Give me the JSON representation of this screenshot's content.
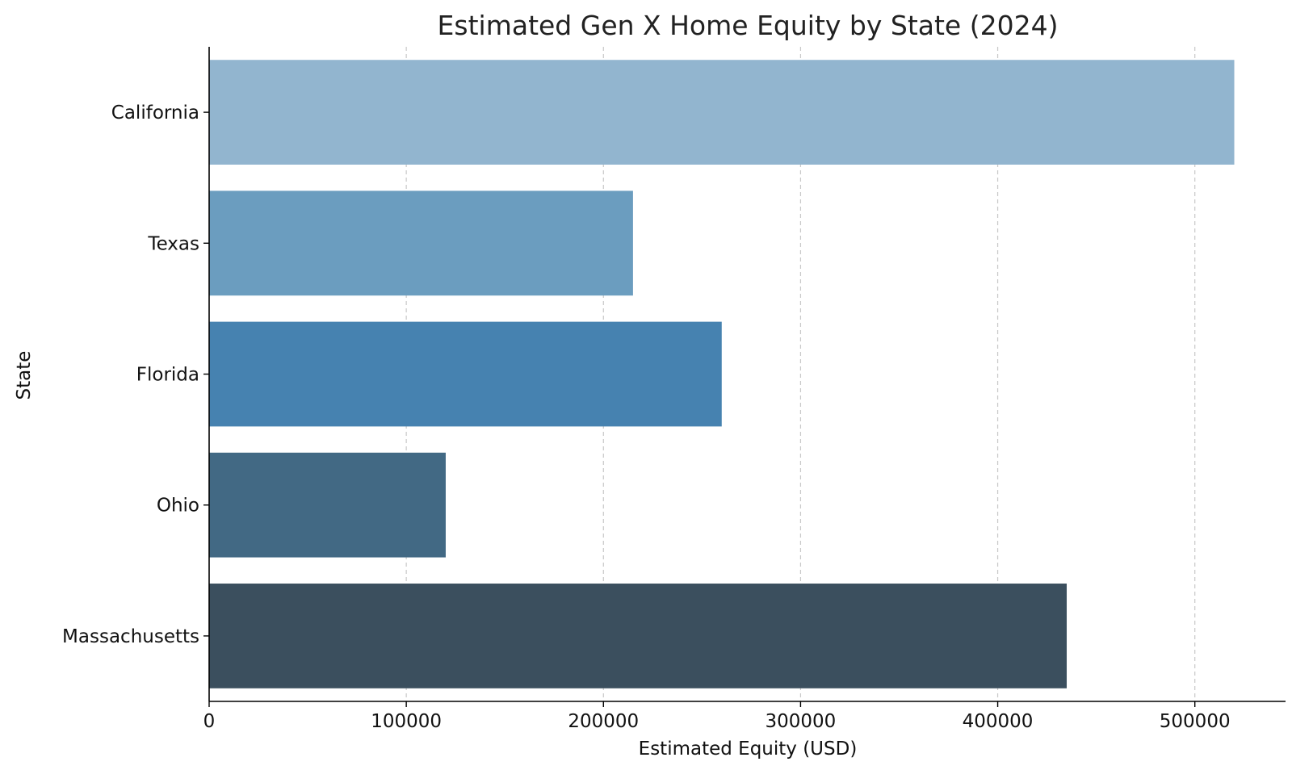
{
  "chart_data": {
    "type": "bar",
    "orientation": "horizontal",
    "title": "Estimated Gen X Home Equity by State (2024)",
    "xlabel": "Estimated Equity (USD)",
    "ylabel": "State",
    "categories": [
      "California",
      "Texas",
      "Florida",
      "Ohio",
      "Massachusetts"
    ],
    "values": [
      520000,
      215000,
      260000,
      120000,
      435000
    ],
    "colors": [
      "#92b5cf",
      "#6b9dbf",
      "#4682b0",
      "#426984",
      "#3b4f5e"
    ],
    "xlim": [
      0,
      546000
    ],
    "xticks": [
      0,
      100000,
      200000,
      300000,
      400000,
      500000
    ],
    "xtick_labels": [
      "0",
      "100000",
      "200000",
      "300000",
      "400000",
      "500000"
    ],
    "grid": "x-dashed",
    "legend": "none"
  }
}
